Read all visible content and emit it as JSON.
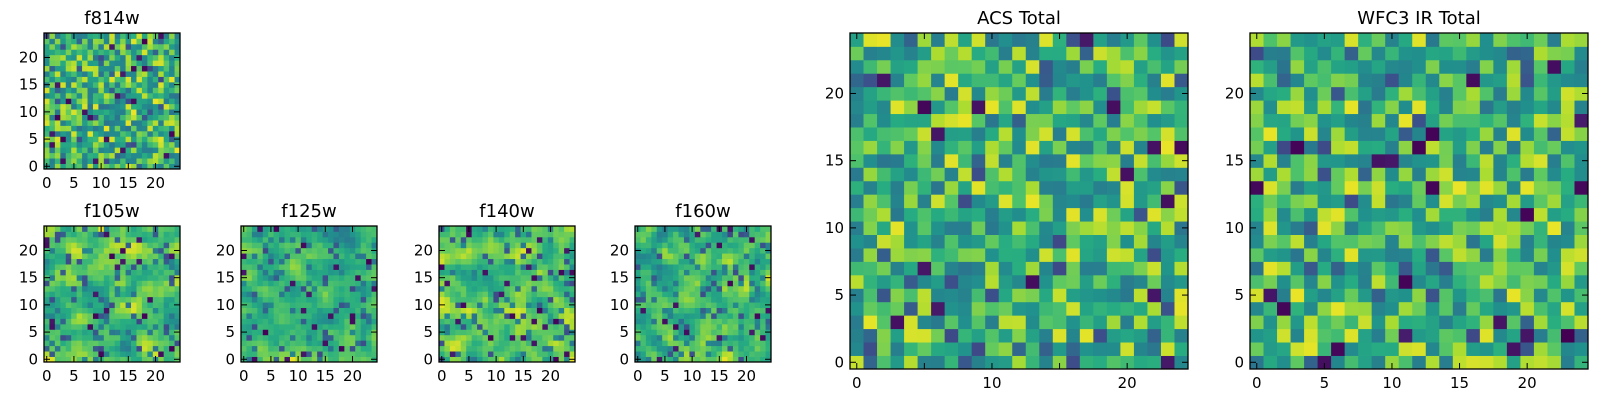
{
  "chart_data": [
    {
      "id": "f814w",
      "type": "heatmap",
      "title": "f814w",
      "grid": 25,
      "xlim": [
        -0.5,
        24.5
      ],
      "ylim": [
        -0.5,
        24.5
      ],
      "xticks": [
        0,
        5,
        10,
        15,
        20
      ],
      "yticks": [
        0,
        5,
        10,
        15,
        20
      ],
      "colormap": "viridis",
      "seed": 814,
      "smooth": 0,
      "tick_labels": {
        "x": [
          "0",
          "5",
          "10",
          "15",
          "20"
        ],
        "y": [
          "0",
          "5",
          "10",
          "15",
          "20"
        ]
      }
    },
    {
      "id": "f105w",
      "type": "heatmap",
      "title": "f105w",
      "grid": 25,
      "xlim": [
        -0.5,
        24.5
      ],
      "ylim": [
        -0.5,
        24.5
      ],
      "xticks": [
        0,
        5,
        10,
        15,
        20
      ],
      "yticks": [
        0,
        5,
        10,
        15,
        20
      ],
      "colormap": "viridis",
      "seed": 105,
      "smooth": 1,
      "tick_labels": {
        "x": [
          "0",
          "5",
          "10",
          "15",
          "20"
        ],
        "y": [
          "0",
          "5",
          "10",
          "15",
          "20"
        ]
      }
    },
    {
      "id": "f125w",
      "type": "heatmap",
      "title": "f125w",
      "grid": 25,
      "xlim": [
        -0.5,
        24.5
      ],
      "ylim": [
        -0.5,
        24.5
      ],
      "xticks": [
        0,
        5,
        10,
        15,
        20
      ],
      "yticks": [
        0,
        5,
        10,
        15,
        20
      ],
      "colormap": "viridis",
      "seed": 125,
      "smooth": 1,
      "tick_labels": {
        "x": [
          "0",
          "5",
          "10",
          "15",
          "20"
        ],
        "y": [
          "0",
          "5",
          "10",
          "15",
          "20"
        ]
      }
    },
    {
      "id": "f140w",
      "type": "heatmap",
      "title": "f140w",
      "grid": 25,
      "xlim": [
        -0.5,
        24.5
      ],
      "ylim": [
        -0.5,
        24.5
      ],
      "xticks": [
        0,
        5,
        10,
        15,
        20
      ],
      "yticks": [
        0,
        5,
        10,
        15,
        20
      ],
      "colormap": "viridis",
      "seed": 140,
      "smooth": 1,
      "tick_labels": {
        "x": [
          "0",
          "5",
          "10",
          "15",
          "20"
        ],
        "y": [
          "0",
          "5",
          "10",
          "15",
          "20"
        ]
      }
    },
    {
      "id": "f160w",
      "type": "heatmap",
      "title": "f160w",
      "grid": 25,
      "xlim": [
        -0.5,
        24.5
      ],
      "ylim": [
        -0.5,
        24.5
      ],
      "xticks": [
        0,
        5,
        10,
        15,
        20
      ],
      "yticks": [
        0,
        5,
        10,
        15,
        20
      ],
      "colormap": "viridis",
      "seed": 160,
      "smooth": 1,
      "tick_labels": {
        "x": [
          "0",
          "5",
          "10",
          "15",
          "20"
        ],
        "y": [
          "0",
          "5",
          "10",
          "15",
          "20"
        ]
      }
    },
    {
      "id": "acs-total",
      "type": "heatmap",
      "title": "ACS Total",
      "grid": 25,
      "xlim": [
        -0.5,
        24.5
      ],
      "ylim": [
        -0.5,
        24.5
      ],
      "xticks": [
        0,
        10,
        20
      ],
      "yticks": [
        0,
        5,
        10,
        15,
        20
      ],
      "colormap": "viridis",
      "seed": 7,
      "smooth": 0,
      "tick_labels": {
        "x": [
          "0",
          "10",
          "20"
        ],
        "y": [
          "0",
          "5",
          "10",
          "15",
          "20"
        ]
      },
      "minor_xticks": [
        5,
        15
      ]
    },
    {
      "id": "wfc3-ir-total",
      "type": "heatmap",
      "title": "WFC3 IR Total",
      "grid": 25,
      "xlim": [
        -0.5,
        24.5
      ],
      "ylim": [
        -0.5,
        24.5
      ],
      "xticks": [
        0,
        5,
        10,
        15,
        20
      ],
      "yticks": [
        0,
        5,
        10,
        15,
        20
      ],
      "colormap": "viridis",
      "seed": 33,
      "smooth": 0,
      "tick_labels": {
        "x": [
          "0",
          "5",
          "10",
          "15",
          "20"
        ],
        "y": [
          "0",
          "5",
          "10",
          "15",
          "20"
        ]
      }
    }
  ]
}
